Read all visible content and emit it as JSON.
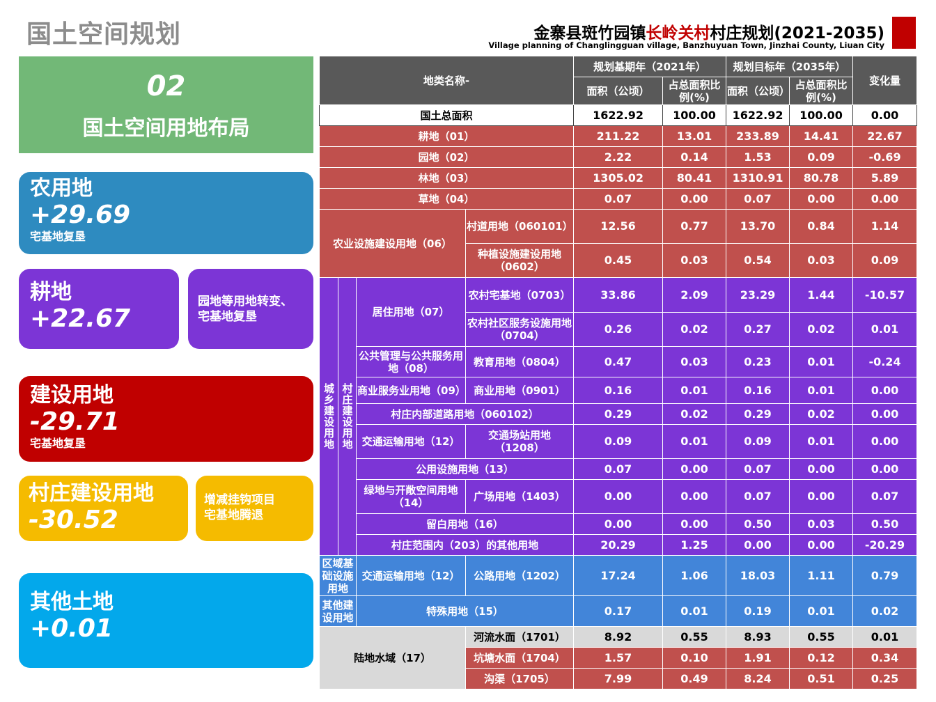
{
  "page_title": "国土空间规划",
  "header": {
    "title_pre": "金寨县斑竹园镇",
    "title_highlight": "长岭关村",
    "title_post": "村庄规划(2021-2035)",
    "subtitle": "Village planning of Changlingguan village, Banzhuyuan Town, Jinzhai County, Liuan City",
    "accent_color": "#c00000"
  },
  "section": {
    "number": "02",
    "title": "国土空间用地布局"
  },
  "cards": {
    "agri": {
      "label": "农用地",
      "value": "+29.69",
      "note": "宅基地复垦",
      "color": "#2e8bc0"
    },
    "crop": {
      "label": "耕地",
      "value": "+22.67",
      "color": "#7c35d6"
    },
    "garden": {
      "note_line1": "园地等用地转变、",
      "note_line2": "宅基地复垦"
    },
    "build": {
      "label": "建设用地",
      "value": "-29.71",
      "note": "宅基地复垦",
      "color": "#c00000"
    },
    "village": {
      "label": "村庄建设用地",
      "value": "-30.52",
      "color": "#f5bb00"
    },
    "hook": {
      "note_line1": "增减挂钩项目",
      "note_line2": "宅基地腾退"
    },
    "other": {
      "label": "其他土地",
      "value": "+0.01",
      "color": "#03a8eb"
    }
  },
  "table": {
    "header": {
      "name_col": "地类名称-",
      "base_year": "规划基期年（2021年）",
      "target_year": "规划目标年（2035年）",
      "area": "面积（公顷）",
      "share": "占总面积比例(%)",
      "change": "变化量"
    },
    "total": {
      "name": "国土总面积",
      "v": [
        "1622.92",
        "100.00",
        "1622.92",
        "100.00",
        "0.00"
      ]
    },
    "rows": [
      {
        "name": "耕地（01）",
        "v": [
          "211.22",
          "13.01",
          "233.89",
          "14.41",
          "22.67"
        ]
      },
      {
        "name": "园地（02）",
        "v": [
          "2.22",
          "0.14",
          "1.53",
          "0.09",
          "-0.69"
        ]
      },
      {
        "name": "林地（03）",
        "v": [
          "1305.02",
          "80.41",
          "1310.91",
          "80.78",
          "5.89"
        ]
      },
      {
        "name": "草地（04）",
        "v": [
          "0.07",
          "0.00",
          "0.07",
          "0.00",
          "0.00"
        ]
      },
      {
        "group": "农业设施建设用地（06）",
        "name": "村道用地（060101）",
        "v": [
          "12.56",
          "0.77",
          "13.70",
          "0.84",
          "1.14"
        ]
      },
      {
        "name": "种植设施建设用地（0602）",
        "v": [
          "0.45",
          "0.03",
          "0.54",
          "0.03",
          "0.09"
        ]
      },
      {
        "outer": "城乡建设用地",
        "inner": "村庄建设用地",
        "group": "居住用地（07）",
        "name": "农村宅基地（0703）",
        "v": [
          "33.86",
          "2.09",
          "23.29",
          "1.44",
          "-10.57"
        ]
      },
      {
        "name": "农村社区服务设施用地（0704）",
        "v": [
          "0.26",
          "0.02",
          "0.27",
          "0.02",
          "0.01"
        ]
      },
      {
        "group": "公共管理与公共服务用地（08）",
        "name": "教育用地（0804）",
        "v": [
          "0.47",
          "0.03",
          "0.23",
          "0.01",
          "-0.24"
        ]
      },
      {
        "group": "商业服务业用地（09）",
        "name": "商业用地（0901）",
        "v": [
          "0.16",
          "0.01",
          "0.16",
          "0.01",
          "0.00"
        ]
      },
      {
        "name": "村庄内部道路用地（060102）",
        "v": [
          "0.29",
          "0.02",
          "0.29",
          "0.02",
          "0.00"
        ]
      },
      {
        "group": "交通运输用地（12）",
        "name": "交通场站用地（1208）",
        "v": [
          "0.09",
          "0.01",
          "0.09",
          "0.01",
          "0.00"
        ]
      },
      {
        "name": "公用设施用地（13）",
        "v": [
          "0.07",
          "0.00",
          "0.07",
          "0.00",
          "0.00"
        ]
      },
      {
        "group": "绿地与开敞空间用地（14）",
        "name": "广场用地（1403）",
        "v": [
          "0.00",
          "0.00",
          "0.07",
          "0.00",
          "0.07"
        ]
      },
      {
        "name": "留白用地（16）",
        "v": [
          "0.00",
          "0.00",
          "0.50",
          "0.03",
          "0.50"
        ]
      },
      {
        "name": "村庄范围内（203）的其他用地",
        "v": [
          "20.29",
          "1.25",
          "0.00",
          "0.00",
          "-20.29"
        ]
      },
      {
        "outer": "区域基础设施用地",
        "group": "交通运输用地（12）",
        "name": "公路用地（1202）",
        "v": [
          "17.24",
          "1.06",
          "18.03",
          "1.11",
          "0.79"
        ]
      },
      {
        "outer": "其他建设用地",
        "name": "特殊用地（15）",
        "v": [
          "0.17",
          "0.01",
          "0.19",
          "0.01",
          "0.02"
        ]
      },
      {
        "group": "陆地水域（17）",
        "name": "河流水面（1701）",
        "v": [
          "8.92",
          "0.55",
          "8.93",
          "0.55",
          "0.01"
        ]
      },
      {
        "name": "坑塘水面（1704）",
        "v": [
          "1.57",
          "0.10",
          "1.91",
          "0.12",
          "0.34"
        ]
      },
      {
        "name": "沟渠（1705）",
        "v": [
          "7.99",
          "0.49",
          "8.24",
          "0.51",
          "0.25"
        ]
      }
    ]
  }
}
